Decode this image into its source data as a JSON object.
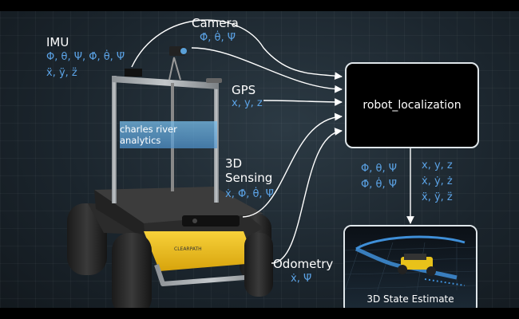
{
  "labels": {
    "imu": "IMU",
    "camera": "Camera",
    "gps": "GPS",
    "sensing": "3D\nSensing",
    "odometry": "Odometry"
  },
  "symbols": {
    "imu_row1": "Φ, θ, Ψ, Φ̇, θ̇, Ψ̇",
    "imu_row2": "ẍ, ÿ, z̈",
    "camera": "Φ̇, θ̇, Ψ̇",
    "gps": "x, y, z",
    "sensing": "ẋ, Φ̇, θ̇, Ψ̇",
    "odometry": "ẋ, Ψ̇",
    "out_left_row1": "Φ, θ, Ψ",
    "out_left_row2": "Φ̇, θ̇, Ψ̇",
    "out_right_row1": "x, y, z",
    "out_right_row2": "ẋ, ẏ, ż",
    "out_right_row3": "ẍ, ÿ, z̈"
  },
  "node_label": "robot_localization",
  "estimate_label": "3D State Estimate",
  "banner_text": "charles river analytics",
  "robot_logo_text": "CLEARPATH",
  "colors": {
    "symbol": "#5ba3e6",
    "robot_yellow": "#f2c21b",
    "box_border": "#dfe6ea"
  }
}
